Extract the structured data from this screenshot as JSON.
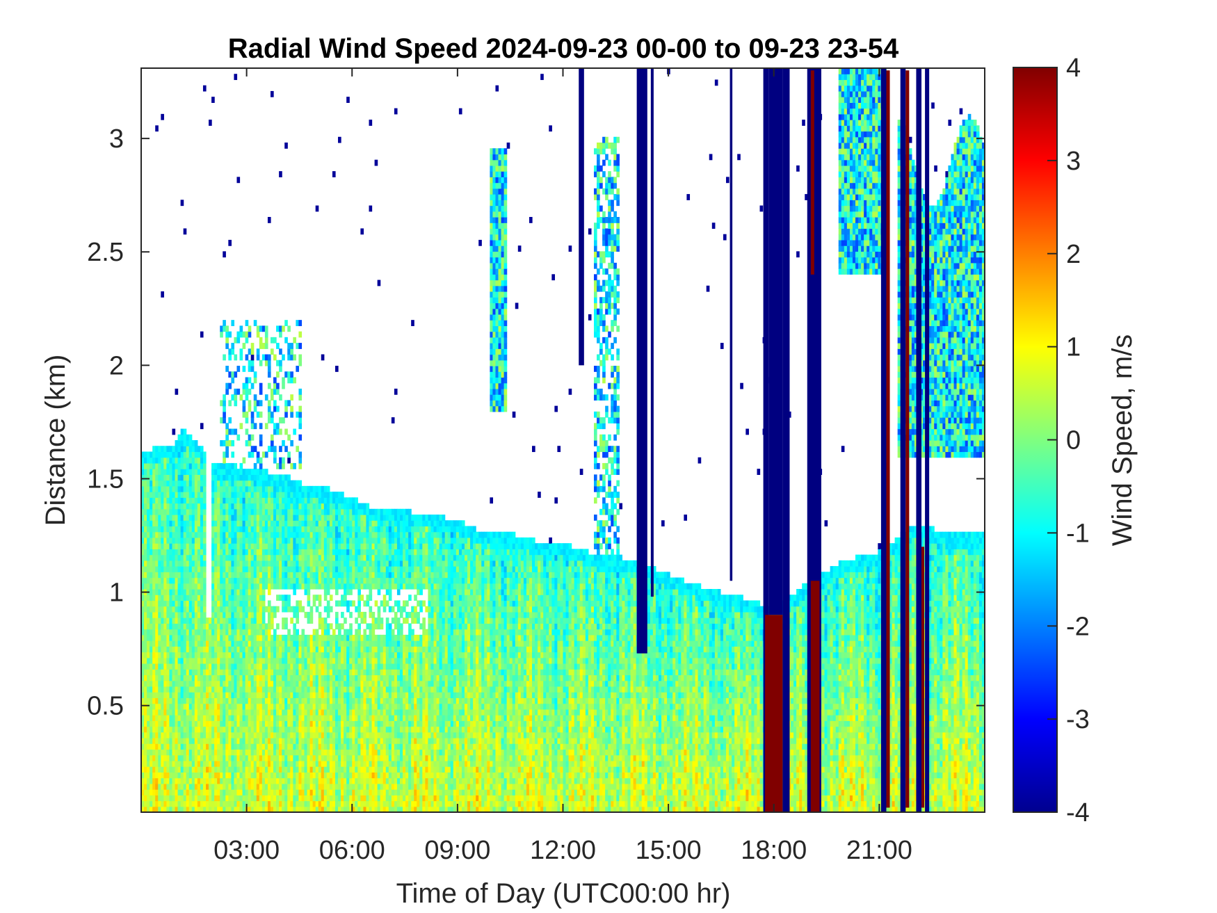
{
  "chart_data": {
    "type": "heatmap",
    "title": "Radial Wind Speed 2024-09-23 00-00 to 09-23 23-54",
    "xlabel": "Time of Day (UTC00:00 hr)",
    "ylabel": "Distance (km)",
    "colorbar_label": "Wind Speed, m/s",
    "x_unit": "hours since 00:00 UTC",
    "xlim": [
      0,
      24
    ],
    "ylim": [
      0.03,
      3.31
    ],
    "clim": [
      -4,
      4
    ],
    "colormap": "jet",
    "x_ticks": [
      {
        "value": 3,
        "label": "03:00"
      },
      {
        "value": 6,
        "label": "06:00"
      },
      {
        "value": 9,
        "label": "09:00"
      },
      {
        "value": 12,
        "label": "12:00"
      },
      {
        "value": 15,
        "label": "15:00"
      },
      {
        "value": 18,
        "label": "18:00"
      },
      {
        "value": 21,
        "label": "21:00"
      }
    ],
    "y_ticks": [
      {
        "value": 0.5,
        "label": "0.5"
      },
      {
        "value": 1,
        "label": "1"
      },
      {
        "value": 1.5,
        "label": "1.5"
      },
      {
        "value": 2,
        "label": "2"
      },
      {
        "value": 2.5,
        "label": "2.5"
      },
      {
        "value": 3,
        "label": "3"
      }
    ],
    "colorbar_ticks": [
      {
        "value": 4,
        "label": "4"
      },
      {
        "value": 3,
        "label": "3"
      },
      {
        "value": 2,
        "label": "2"
      },
      {
        "value": 1,
        "label": "1"
      },
      {
        "value": 0,
        "label": "0"
      },
      {
        "value": -1,
        "label": "-1"
      },
      {
        "value": -2,
        "label": "-2"
      },
      {
        "value": -3,
        "label": "-3"
      },
      {
        "value": -4,
        "label": "-4"
      }
    ],
    "signal_top_km": {
      "time_hr": [
        0,
        1,
        1.2,
        1.8,
        2,
        2.5,
        3,
        4,
        4.6,
        5.5,
        6.5,
        7.5,
        8.3,
        9,
        9.5,
        10,
        10.5,
        11,
        11.5,
        12,
        13,
        13.5,
        14,
        15,
        16,
        17,
        17.5,
        18,
        19,
        20,
        21,
        21.5,
        22,
        23,
        24
      ],
      "distance_km": [
        1.62,
        1.66,
        1.72,
        1.62,
        1.57,
        1.56,
        1.55,
        1.52,
        1.48,
        1.45,
        1.38,
        1.36,
        1.34,
        1.32,
        1.28,
        1.26,
        1.26,
        1.24,
        1.21,
        1.22,
        1.16,
        1.16,
        1.14,
        1.08,
        1.02,
        0.98,
        0.96,
        0.92,
        1.05,
        1.14,
        1.18,
        1.24,
        1.3,
        1.26,
        1.26
      ]
    },
    "strong_negative_columns": [
      {
        "start_hr": 12.45,
        "end_hr": 12.6,
        "bottom_km": 2.0
      },
      {
        "start_hr": 14.1,
        "end_hr": 14.4,
        "bottom_km": 0.73
      },
      {
        "start_hr": 14.5,
        "end_hr": 14.58,
        "bottom_km": 0.98
      },
      {
        "start_hr": 16.75,
        "end_hr": 16.82,
        "bottom_km": 1.05
      },
      {
        "start_hr": 17.7,
        "end_hr": 17.85,
        "bottom_km": 0.03
      },
      {
        "start_hr": 17.85,
        "end_hr": 18.25,
        "bottom_km": 0.9
      },
      {
        "start_hr": 18.25,
        "end_hr": 18.45,
        "bottom_km": 0.03
      },
      {
        "start_hr": 18.95,
        "end_hr": 19.35,
        "bottom_km": 0.03
      },
      {
        "start_hr": 21.05,
        "end_hr": 21.2,
        "bottom_km": 0.03
      },
      {
        "start_hr": 21.6,
        "end_hr": 21.75,
        "bottom_km": 0.03
      },
      {
        "start_hr": 22.05,
        "end_hr": 22.2,
        "bottom_km": 0.03
      },
      {
        "start_hr": 22.3,
        "end_hr": 22.42,
        "bottom_km": 0.03
      }
    ],
    "strong_positive_columns": [
      {
        "start_hr": 17.75,
        "end_hr": 18.25,
        "top_km": 0.9,
        "bottom_km": 0.03
      },
      {
        "start_hr": 19.05,
        "end_hr": 19.3,
        "top_km": 1.05,
        "bottom_km": 0.03
      },
      {
        "start_hr": 19.05,
        "end_hr": 19.15,
        "top_km": 3.3,
        "bottom_km": 2.4
      },
      {
        "start_hr": 21.2,
        "end_hr": 21.3,
        "top_km": 3.3,
        "bottom_km": 0.05
      },
      {
        "start_hr": 21.75,
        "end_hr": 21.85,
        "top_km": 3.3,
        "bottom_km": 0.05
      },
      {
        "start_hr": 22.2,
        "end_hr": 22.28,
        "top_km": 1.2,
        "bottom_km": 0.05
      }
    ],
    "near_surface_speed_range": [
      -1.5,
      2.5
    ],
    "upper_cloud_speed_range": [
      -2.5,
      0.5
    ]
  }
}
